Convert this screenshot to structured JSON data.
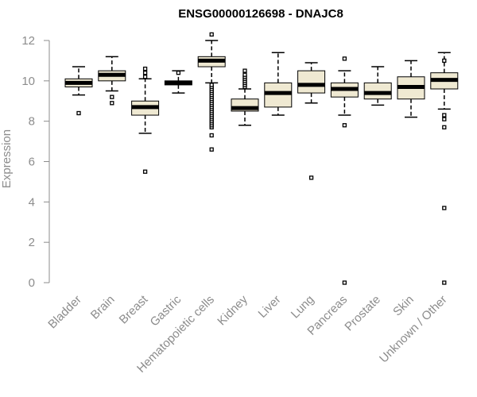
{
  "chart_data": {
    "type": "boxplot",
    "title": "ENSG00000126698 - DNAJC8",
    "ylabel": "Expression",
    "xlabel": "",
    "ylim": [
      0,
      12
    ],
    "yticks": [
      0,
      2,
      4,
      6,
      8,
      10,
      12
    ],
    "box_fill": "#efe9d2",
    "categories": [
      "Bladder",
      "Brain",
      "Breast",
      "Gastric",
      "Hematopoietic cells",
      "Kidney",
      "Liver",
      "Lung",
      "Pancreas",
      "Prostate",
      "Skin",
      "Unknown / Other"
    ],
    "boxes": [
      {
        "min": 9.3,
        "q1": 9.7,
        "median": 9.9,
        "q3": 10.1,
        "max": 10.7,
        "outliers": [
          8.4
        ]
      },
      {
        "min": 9.5,
        "q1": 10.0,
        "median": 10.3,
        "q3": 10.5,
        "max": 11.2,
        "outliers": [
          8.9,
          9.2
        ]
      },
      {
        "min": 7.4,
        "q1": 8.3,
        "median": 8.7,
        "q3": 9.0,
        "max": 10.1,
        "outliers": [
          5.5,
          10.2,
          10.4,
          10.6
        ]
      },
      {
        "min": 9.4,
        "q1": 9.8,
        "median": 9.9,
        "q3": 10.0,
        "max": 10.5,
        "outliers": [
          10.4
        ]
      },
      {
        "min": 9.9,
        "q1": 10.7,
        "median": 11.0,
        "q3": 11.2,
        "max": 12.0,
        "outliers": [
          6.6,
          7.3,
          7.7,
          7.8,
          7.9,
          8.0,
          8.1,
          8.2,
          8.3,
          8.4,
          8.5,
          8.6,
          8.7,
          8.8,
          8.9,
          9.0,
          9.1,
          9.2,
          9.3,
          9.4,
          9.5,
          9.6,
          9.7,
          9.8,
          12.3
        ]
      },
      {
        "min": 7.8,
        "q1": 8.5,
        "median": 8.65,
        "q3": 9.1,
        "max": 9.6,
        "outliers": [
          9.7,
          9.8,
          9.9,
          10.0,
          10.1,
          10.2,
          10.3,
          10.5
        ]
      },
      {
        "min": 8.3,
        "q1": 8.7,
        "median": 9.4,
        "q3": 9.9,
        "max": 11.4,
        "outliers": []
      },
      {
        "min": 8.9,
        "q1": 9.4,
        "median": 9.8,
        "q3": 10.5,
        "max": 10.9,
        "outliers": [
          5.2
        ]
      },
      {
        "min": 8.3,
        "q1": 9.2,
        "median": 9.6,
        "q3": 9.9,
        "max": 10.5,
        "outliers": [
          0.0,
          7.8,
          11.1
        ]
      },
      {
        "min": 8.8,
        "q1": 9.1,
        "median": 9.4,
        "q3": 9.9,
        "max": 10.7,
        "outliers": []
      },
      {
        "min": 8.2,
        "q1": 9.1,
        "median": 9.7,
        "q3": 10.2,
        "max": 11.0,
        "outliers": []
      },
      {
        "min": 8.6,
        "q1": 9.6,
        "median": 10.05,
        "q3": 10.4,
        "max": 11.4,
        "outliers": [
          0.0,
          3.7,
          7.7,
          8.1,
          8.3,
          11.0
        ]
      }
    ]
  }
}
